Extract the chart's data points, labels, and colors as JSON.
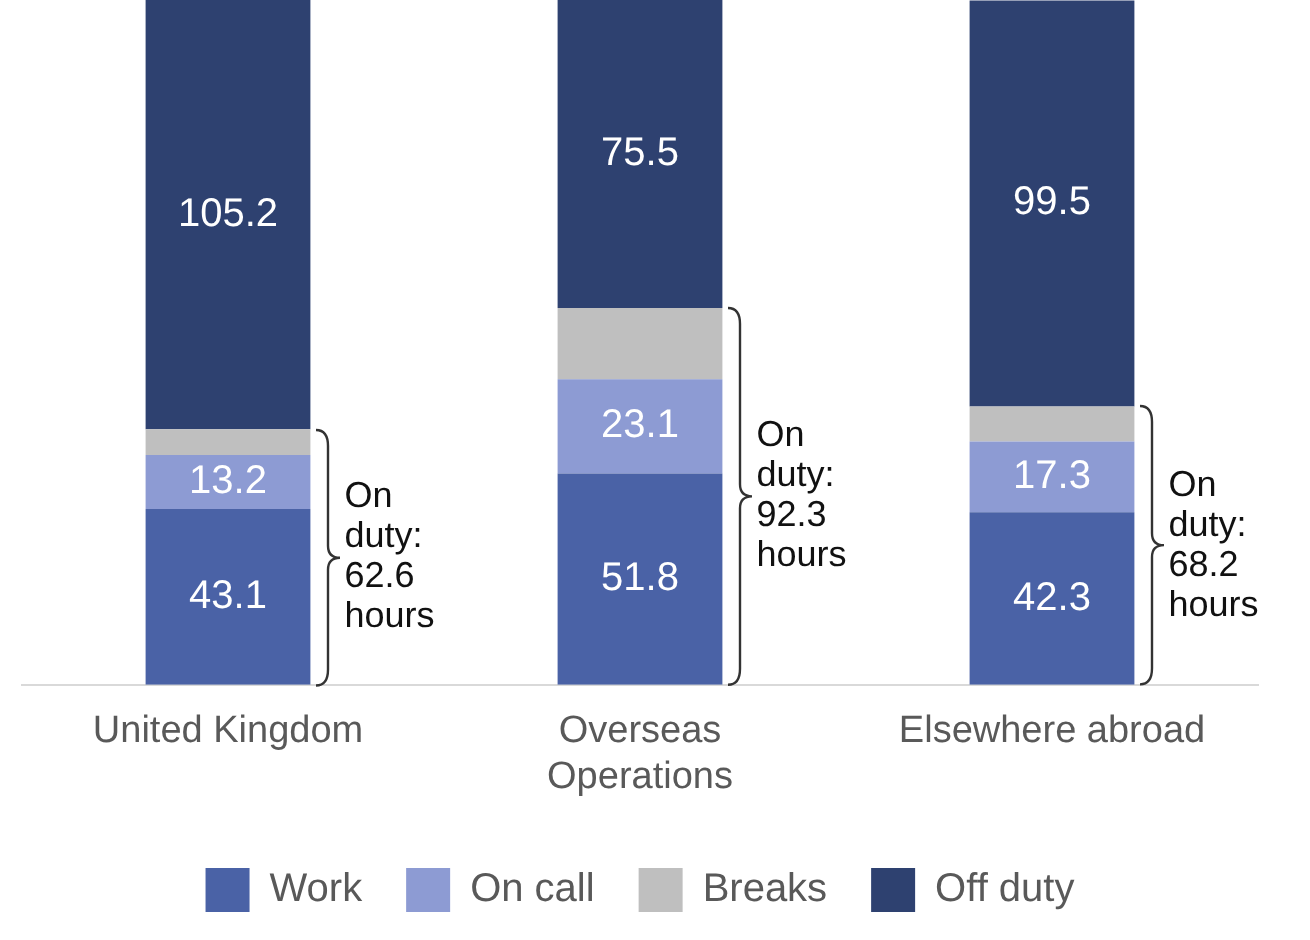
{
  "chart_data": {
    "type": "bar",
    "stacked": true,
    "legend": "bottom",
    "grid": false,
    "categories": [
      "United Kingdom",
      "Overseas Operations",
      "Elsewhere abroad"
    ],
    "series": [
      {
        "name": "Work",
        "color": "#4a62a6",
        "values": [
          43.1,
          51.8,
          42.3
        ],
        "value_labels": [
          "43.1",
          "51.8",
          "42.3"
        ]
      },
      {
        "name": "On call",
        "color": "#8d9bd3",
        "values": [
          13.2,
          23.1,
          17.3
        ],
        "value_labels": [
          "13.2",
          "23.1",
          "17.3"
        ]
      },
      {
        "name": "Breaks",
        "color": "#bfbfbf",
        "values": [
          6.3,
          17.4,
          8.6
        ],
        "value_labels": [
          null,
          null,
          null
        ]
      },
      {
        "name": "Off duty",
        "color": "#2e4170",
        "values": [
          105.2,
          75.5,
          99.5
        ],
        "value_labels": [
          "105.2",
          "75.5",
          "99.5"
        ]
      }
    ],
    "annotations": [
      "On duty: 62.6 hours",
      "On duty: 92.3 hours",
      "On duty: 68.2 hours"
    ]
  }
}
